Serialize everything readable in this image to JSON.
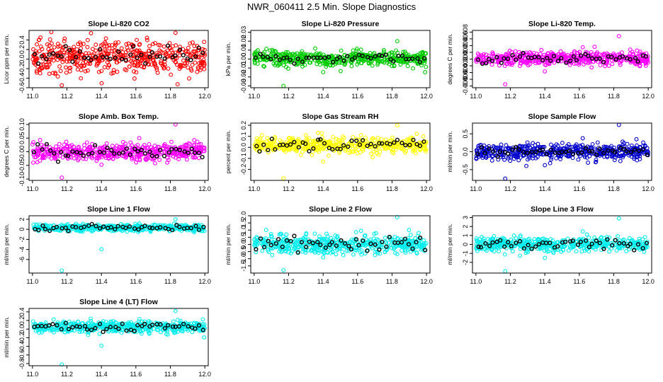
{
  "figure_title": "NWR_060411  2.5 Min. Slope Diagnostics",
  "chart_data": [
    {
      "type": "scatter",
      "title": "Slope Li-820 CO2",
      "ylabel": "Licor ppm per min.",
      "xlim": [
        10.98,
        12.02
      ],
      "ylim": [
        -0.6,
        0.6
      ],
      "xticks": [
        11.0,
        11.2,
        11.4,
        11.6,
        11.8,
        12.0
      ],
      "xtick_labels": [
        "11.0",
        "11.2",
        "11.4",
        "11.6",
        "11.8",
        "12.0"
      ],
      "yticks": [
        -0.6,
        -0.4,
        -0.2,
        0.0,
        0.2,
        0.4
      ],
      "ytick_labels": [
        "-0.6",
        "-0.4",
        "-0.2",
        "0.0",
        "0.2",
        "0.4"
      ],
      "color": "#ff0000",
      "x_range": [
        11.0,
        12.0
      ],
      "points": {
        "n": 480,
        "center": 0.05,
        "spread": 0.3,
        "outlier_low": -0.55,
        "outlier_high": 0.55
      },
      "highlight": {
        "color": "#000000",
        "n": 45,
        "center": 0.05,
        "spread": 0.15
      }
    },
    {
      "type": "scatter",
      "title": "Slope Li-820 Pressure",
      "ylabel": "kPa per min.",
      "xlim": [
        10.98,
        12.02
      ],
      "ylim": [
        -0.032,
        0.032
      ],
      "xticks": [
        11.0,
        11.2,
        11.4,
        11.6,
        11.8,
        12.0
      ],
      "xtick_labels": [
        "11.0",
        "11.2",
        "11.4",
        "11.6",
        "11.8",
        "12.0"
      ],
      "yticks": [
        -0.03,
        -0.02,
        -0.01,
        0.0,
        0.01,
        0.02,
        0.03
      ],
      "ytick_labels": [
        "-0.03",
        "-0.02",
        "-0.01",
        "0.00",
        "0.01",
        "0.02",
        "0.03"
      ],
      "color": "#00cc00",
      "x_range": [
        11.0,
        12.0
      ],
      "points": {
        "n": 480,
        "center": 0.001,
        "spread": 0.008,
        "outlier_low": -0.03,
        "outlier_high": 0.02
      },
      "highlight": {
        "color": "#000000",
        "n": 45,
        "center": 0.001,
        "spread": 0.004
      }
    },
    {
      "type": "scatter",
      "title": "Slope Li-820 Temp.",
      "ylabel": "degrees C per min.",
      "xlim": [
        10.98,
        12.02
      ],
      "ylim": [
        -0.0085,
        0.0085
      ],
      "xticks": [
        11.0,
        11.2,
        11.4,
        11.6,
        11.8,
        12.0
      ],
      "xtick_labels": [
        "11.0",
        "11.2",
        "11.4",
        "11.6",
        "11.8",
        "12.0"
      ],
      "yticks": [
        -0.008,
        -0.006,
        -0.004,
        -0.002,
        0.0,
        0.002,
        0.004,
        0.006,
        0.008
      ],
      "ytick_labels": [
        "-0.008",
        "-0.006",
        "-0.004",
        "-0.002",
        "0.000",
        "0.002",
        "0.004",
        "0.006",
        "0.008"
      ],
      "color": "#ff00ff",
      "x_range": [
        11.0,
        12.0
      ],
      "points": {
        "n": 480,
        "center": 0.0002,
        "spread": 0.0018,
        "outlier_low": -0.0075,
        "outlier_high": 0.0068
      },
      "highlight": {
        "color": "#000000",
        "n": 45,
        "center": 0.0002,
        "spread": 0.0012
      }
    },
    {
      "type": "scatter",
      "title": "Slope Amb. Box Temp.",
      "ylabel": "degrees C per min.",
      "xlim": [
        10.98,
        12.02
      ],
      "ylim": [
        -0.105,
        0.105
      ],
      "xticks": [
        11.0,
        11.2,
        11.4,
        11.6,
        11.8,
        12.0
      ],
      "xtick_labels": [
        "11.0",
        "11.2",
        "11.4",
        "11.6",
        "11.8",
        "12.0"
      ],
      "yticks": [
        -0.1,
        -0.05,
        0.0,
        0.05,
        0.1
      ],
      "ytick_labels": [
        "-0.10",
        "-0.05",
        "0.00",
        "0.05",
        "0.10"
      ],
      "color": "#ff00ff",
      "x_range": [
        11.0,
        12.0
      ],
      "points": {
        "n": 480,
        "center": 0.0,
        "spread": 0.03,
        "outlier_low": -0.095,
        "outlier_high": 0.1
      },
      "highlight": {
        "color": "#000000",
        "n": 45,
        "center": 0.0,
        "spread": 0.02
      }
    },
    {
      "type": "scatter",
      "title": "Slope Gas Stream RH",
      "ylabel": "percent per min.",
      "xlim": [
        10.98,
        12.02
      ],
      "ylim": [
        -0.3,
        0.22
      ],
      "xticks": [
        11.0,
        11.2,
        11.4,
        11.6,
        11.8,
        12.0
      ],
      "xtick_labels": [
        "11.0",
        "11.2",
        "11.4",
        "11.6",
        "11.8",
        "12.0"
      ],
      "yticks": [
        -0.2,
        -0.1,
        0.0,
        0.1,
        0.2
      ],
      "ytick_labels": [
        "-0.2",
        "-0.1",
        "0.0",
        "0.1",
        "0.2"
      ],
      "color": "#ffff00",
      "x_range": [
        11.0,
        12.0
      ],
      "points": {
        "n": 480,
        "center": 0.02,
        "spread": 0.06,
        "outlier_low": -0.28,
        "outlier_high": 0.2
      },
      "highlight": {
        "color": "#000000",
        "n": 45,
        "center": 0.03,
        "spread": 0.05
      }
    },
    {
      "type": "scatter",
      "title": "Slope Sample Flow",
      "ylabel": "ml/min per min.",
      "xlim": [
        10.98,
        12.02
      ],
      "ylim": [
        -0.8,
        0.8
      ],
      "xticks": [
        11.0,
        11.2,
        11.4,
        11.6,
        11.8,
        12.0
      ],
      "xtick_labels": [
        "11.0",
        "11.2",
        "11.4",
        "11.6",
        "11.8",
        "12.0"
      ],
      "yticks": [
        -0.5,
        0.0,
        0.5
      ],
      "ytick_labels": [
        "-0.5",
        "0.0",
        "0.5"
      ],
      "color": "#0000cc",
      "x_range": [
        11.0,
        12.0
      ],
      "points": {
        "n": 480,
        "center": 0.0,
        "spread": 0.2,
        "outlier_low": -0.75,
        "outlier_high": 0.75
      },
      "highlight": {
        "color": "#000000",
        "n": 45,
        "center": 0.0,
        "spread": 0.1
      }
    },
    {
      "type": "scatter",
      "title": "Slope Line 1 Flow",
      "ylabel": "ml/min per min.",
      "xlim": [
        10.98,
        12.02
      ],
      "ylim": [
        -8.7,
        2.7
      ],
      "xticks": [
        11.0,
        11.2,
        11.4,
        11.6,
        11.8,
        12.0
      ],
      "xtick_labels": [
        "11.0",
        "11.2",
        "11.4",
        "11.6",
        "11.8",
        "12.0"
      ],
      "yticks": [
        -6,
        -4,
        -2,
        0,
        2
      ],
      "ytick_labels": [
        "-6",
        "-4",
        "-2",
        "0",
        "2"
      ],
      "color": "#00eeee",
      "x_range": [
        11.0,
        12.0
      ],
      "points": {
        "n": 480,
        "center": 0.3,
        "spread": 0.6,
        "outlier_low": -8.2,
        "outlier_high": 2.0
      },
      "highlight": {
        "color": "#000000",
        "n": 45,
        "center": 0.3,
        "spread": 0.4
      }
    },
    {
      "type": "scatter",
      "title": "Slope Line 2 Flow",
      "ylabel": "ml/min per min.",
      "xlim": [
        10.98,
        12.02
      ],
      "ylim": [
        -2.0,
        2.0
      ],
      "xticks": [
        11.0,
        11.2,
        11.4,
        11.6,
        11.8,
        12.0
      ],
      "xtick_labels": [
        "11.0",
        "11.2",
        "11.4",
        "11.6",
        "11.8",
        "12.0"
      ],
      "yticks": [
        -1.5,
        -1.0,
        -0.5,
        0.0,
        0.5,
        1.0,
        1.5,
        2.0
      ],
      "ytick_labels": [
        "-1.5",
        "-1.0",
        "-0.5",
        "0.0",
        "0.5",
        "1.0",
        "1.5",
        "2.0"
      ],
      "color": "#00eeee",
      "x_range": [
        11.0,
        12.0
      ],
      "points": {
        "n": 480,
        "center": 0.0,
        "spread": 0.6,
        "outlier_low": -1.8,
        "outlier_high": 1.9
      },
      "highlight": {
        "color": "#000000",
        "n": 45,
        "center": 0.0,
        "spread": 0.5
      }
    },
    {
      "type": "scatter",
      "title": "Slope Line 3 Flow",
      "ylabel": "ml/min per min.",
      "xlim": [
        10.98,
        12.02
      ],
      "ylim": [
        -3.2,
        3.2
      ],
      "xticks": [
        11.0,
        11.2,
        11.4,
        11.6,
        11.8,
        12.0
      ],
      "xtick_labels": [
        "11.0",
        "11.2",
        "11.4",
        "11.6",
        "11.8",
        "12.0"
      ],
      "yticks": [
        -2,
        -1,
        0,
        1,
        2,
        3
      ],
      "ytick_labels": [
        "-2",
        "-1",
        "0",
        "1",
        "2",
        "3"
      ],
      "color": "#00eeee",
      "x_range": [
        11.0,
        12.0
      ],
      "points": {
        "n": 480,
        "center": 0.0,
        "spread": 0.7,
        "outlier_low": -3.0,
        "outlier_high": 2.9
      },
      "highlight": {
        "color": "#000000",
        "n": 45,
        "center": 0.0,
        "spread": 0.6
      }
    },
    {
      "type": "scatter",
      "title": "Slope Line 4 (LT) Flow",
      "ylabel": "ml/min per min.",
      "xlim": [
        10.98,
        12.02
      ],
      "ylim": [
        -0.85,
        0.48
      ],
      "xticks": [
        11.0,
        11.2,
        11.4,
        11.6,
        11.8,
        12.0
      ],
      "xtick_labels": [
        "11.0",
        "11.2",
        "11.4",
        "11.6",
        "11.8",
        "12.0"
      ],
      "yticks": [
        -0.8,
        -0.6,
        -0.4,
        -0.2,
        0.0,
        0.2,
        0.4
      ],
      "ytick_labels": [
        "-0.8",
        "-0.6",
        "-0.4",
        "-0.2",
        "0.0",
        "0.2",
        "0.4"
      ],
      "color": "#00eeee",
      "x_range": [
        11.0,
        12.0
      ],
      "points": {
        "n": 480,
        "center": 0.05,
        "spread": 0.12,
        "outlier_low": -0.82,
        "outlier_high": 0.42
      },
      "highlight": {
        "color": "#000000",
        "n": 45,
        "center": 0.05,
        "spread": 0.1
      }
    }
  ]
}
